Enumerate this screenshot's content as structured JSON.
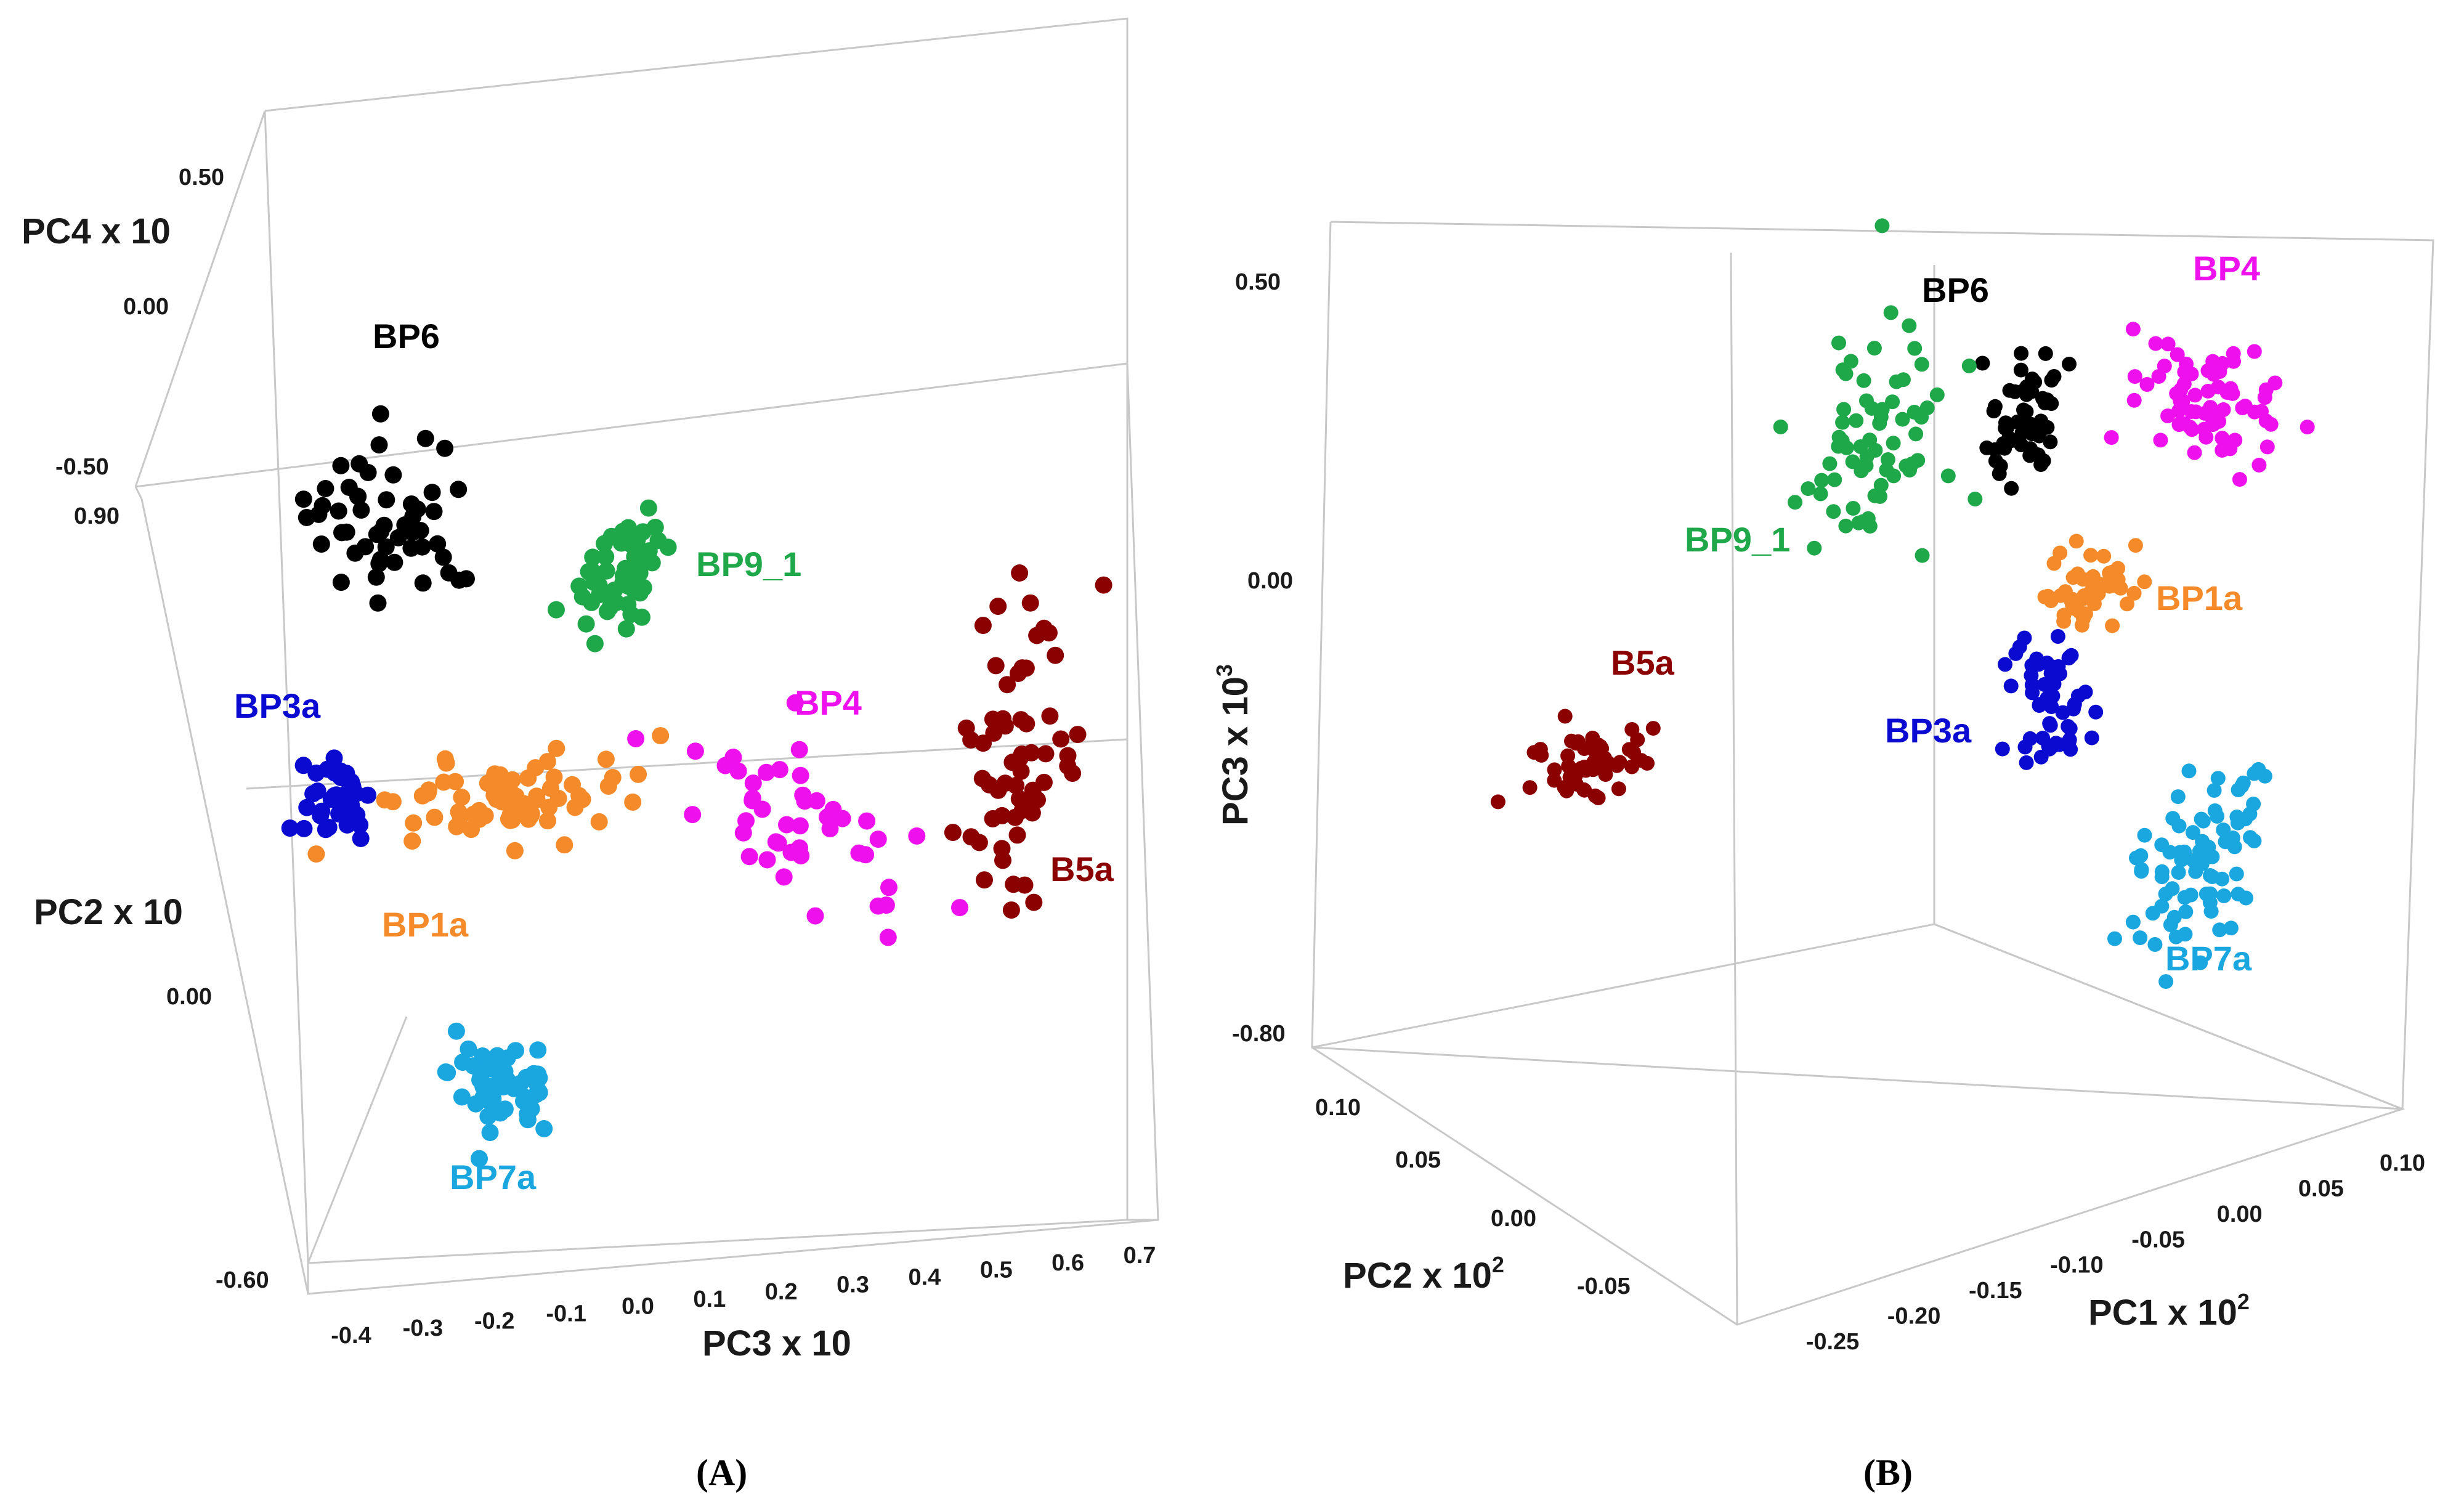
{
  "chart_data": [
    {
      "type": "scatter",
      "projection": "3d",
      "panel_label": "(A)",
      "axes": {
        "x": {
          "label": "PC3 x 10",
          "ticks": [
            "-0.4",
            "-0.3",
            "-0.2",
            "-0.1",
            "0.0",
            "0.1",
            "0.2",
            "0.3",
            "0.4",
            "0.5",
            "0.6",
            "0.7"
          ]
        },
        "y": {
          "label": "PC2 x 10",
          "ticks": [
            "0.90",
            "0.00",
            "-0.60"
          ]
        },
        "z": {
          "label": "PC4 x 10",
          "ticks": [
            "0.50",
            "0.00",
            "-0.50"
          ]
        }
      },
      "series": [
        {
          "name": "BP6",
          "color": "#000000",
          "point_count": 52
        },
        {
          "name": "BP9_1",
          "color": "#1fa84a",
          "point_count": 55
        },
        {
          "name": "BP3a",
          "color": "#0a0ad0",
          "point_count": 38
        },
        {
          "name": "BP1a",
          "color": "#f58a2a",
          "point_count": 75
        },
        {
          "name": "BP4",
          "color": "#ee11ee",
          "point_count": 45
        },
        {
          "name": "B5a",
          "color": "#8b0000",
          "point_count": 62
        },
        {
          "name": "BP7a",
          "color": "#1aa7e0",
          "point_count": 60
        }
      ]
    },
    {
      "type": "scatter",
      "projection": "3d",
      "panel_label": "(B)",
      "axes": {
        "x": {
          "label": "PC1 x 10",
          "label_sup": "2",
          "ticks": [
            "-0.25",
            "-0.20",
            "-0.15",
            "-0.10",
            "-0.05",
            "0.00",
            "0.05",
            "0.10"
          ]
        },
        "y": {
          "label": "PC2 x 10",
          "label_sup": "2",
          "ticks": [
            "0.10",
            "0.05",
            "0.00",
            "-0.05"
          ]
        },
        "z": {
          "label": "PC3 x 10",
          "label_sup": "3",
          "ticks": [
            "0.50",
            "0.00",
            "-0.80"
          ]
        }
      },
      "series": [
        {
          "name": "BP6",
          "color": "#000000",
          "point_count": 55
        },
        {
          "name": "BP4",
          "color": "#ee11ee",
          "point_count": 75
        },
        {
          "name": "BP9_1",
          "color": "#1fa84a",
          "point_count": 70
        },
        {
          "name": "BP1a",
          "color": "#f58a2a",
          "point_count": 50
        },
        {
          "name": "B5a",
          "color": "#8b0000",
          "point_count": 55
        },
        {
          "name": "BP3a",
          "color": "#0a0ad0",
          "point_count": 55
        },
        {
          "name": "BP7a",
          "color": "#1aa7e0",
          "point_count": 80
        }
      ]
    }
  ]
}
